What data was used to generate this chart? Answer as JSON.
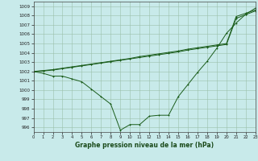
{
  "title": "Graphe pression niveau de la mer (hPa)",
  "xlim": [
    0,
    23
  ],
  "ylim": [
    995.5,
    1009.5
  ],
  "yticks": [
    996,
    997,
    998,
    999,
    1000,
    1001,
    1002,
    1003,
    1004,
    1005,
    1006,
    1007,
    1008,
    1009
  ],
  "xticks": [
    0,
    1,
    2,
    3,
    4,
    5,
    6,
    7,
    8,
    9,
    10,
    11,
    12,
    13,
    14,
    15,
    16,
    17,
    18,
    19,
    20,
    21,
    22,
    23
  ],
  "bg_color": "#c8eaea",
  "line_color": "#1a5c1a",
  "grid_color": "#9bbfaa",
  "trend_upper": [
    1002.0,
    1002.1,
    1002.2,
    1002.35,
    1002.5,
    1002.65,
    1002.8,
    1002.95,
    1003.1,
    1003.25,
    1003.4,
    1003.6,
    1003.75,
    1003.9,
    1004.05,
    1004.2,
    1004.4,
    1004.55,
    1004.7,
    1004.85,
    1005.0,
    1007.9,
    1008.25,
    1008.6
  ],
  "trend_lower": [
    1002.0,
    1002.05,
    1002.15,
    1002.3,
    1002.45,
    1002.6,
    1002.75,
    1002.9,
    1003.05,
    1003.2,
    1003.35,
    1003.5,
    1003.65,
    1003.8,
    1003.95,
    1004.1,
    1004.3,
    1004.45,
    1004.6,
    1004.75,
    1004.9,
    1007.7,
    1008.1,
    1008.5
  ],
  "curve": [
    1002.0,
    1001.8,
    1001.5,
    1001.5,
    1001.2,
    1000.9,
    1000.1,
    999.3,
    998.5,
    995.7,
    996.3,
    996.3,
    997.2,
    997.3,
    997.3,
    999.3,
    1000.6,
    1001.9,
    1003.1,
    1004.5,
    1006.1,
    1007.2,
    1008.15,
    1008.8
  ]
}
